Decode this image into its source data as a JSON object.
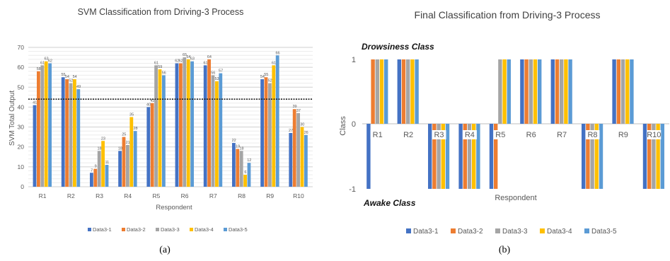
{
  "captions": {
    "left": "(a)",
    "right": "(b)"
  },
  "chart_data": [
    {
      "type": "bar",
      "title": "SVM Classification from Driving-3 Process",
      "xlabel": "Respondent",
      "ylabel": "SVM Total Output",
      "ylim": [
        0,
        70
      ],
      "yticks": [
        "0",
        "10",
        "20",
        "30",
        "40",
        "50",
        "60",
        "70"
      ],
      "threshold": 44,
      "grid": true,
      "legend_position": "bottom",
      "categories": [
        "R1",
        "R2",
        "R3",
        "R4",
        "R5",
        "R6",
        "R7",
        "R8",
        "R9",
        "R10"
      ],
      "colors": [
        "#4472C4",
        "#ED7D31",
        "#A5A5A5",
        "#FFC000",
        "#5B9BD5"
      ],
      "series": [
        {
          "name": "Data3-1",
          "values": [
            41,
            55,
            7,
            18,
            40,
            62,
            61,
            22,
            54,
            27
          ]
        },
        {
          "name": "Data3-2",
          "values": [
            58,
            54,
            9,
            25,
            42,
            62,
            64,
            19,
            55,
            39
          ]
        },
        {
          "name": "Data3-3",
          "values": [
            61,
            52,
            18,
            21,
            61,
            65,
            56,
            18,
            52,
            37
          ]
        },
        {
          "name": "Data3-4",
          "values": [
            63,
            54,
            23,
            35,
            59,
            64,
            53,
            6,
            61,
            30
          ]
        },
        {
          "name": "Data3-5",
          "values": [
            62,
            49,
            11,
            28,
            56,
            63,
            57,
            12,
            66,
            26
          ]
        }
      ]
    },
    {
      "type": "bar",
      "title": "Final Classification from Driving-3 Process",
      "xlabel": "Respondent",
      "ylabel": "Class",
      "ylim": [
        -1,
        1
      ],
      "yticks": [
        "-1",
        "0",
        "1"
      ],
      "upper_annotation": "Drowsiness Class",
      "lower_annotation": "Awake Class",
      "legend_position": "bottom",
      "categories": [
        "R1",
        "R2",
        "R3",
        "R4",
        "R5",
        "R6",
        "R7",
        "R8",
        "R9",
        "R10"
      ],
      "colors": [
        "#4472C4",
        "#ED7D31",
        "#A5A5A5",
        "#FFC000",
        "#5B9BD5"
      ],
      "series": [
        {
          "name": "Data3-1",
          "values": [
            -1,
            1,
            -1,
            -1,
            -1,
            1,
            1,
            -1,
            1,
            -1
          ]
        },
        {
          "name": "Data3-2",
          "values": [
            1,
            1,
            -1,
            -1,
            -1,
            1,
            1,
            -1,
            1,
            -1
          ]
        },
        {
          "name": "Data3-3",
          "values": [
            1,
            1,
            -1,
            -1,
            1,
            1,
            1,
            -1,
            1,
            -1
          ]
        },
        {
          "name": "Data3-4",
          "values": [
            1,
            1,
            -1,
            -1,
            1,
            1,
            1,
            -1,
            1,
            -1
          ]
        },
        {
          "name": "Data3-5",
          "values": [
            1,
            1,
            -1,
            -1,
            1,
            1,
            1,
            -1,
            1,
            -1
          ]
        }
      ]
    }
  ]
}
